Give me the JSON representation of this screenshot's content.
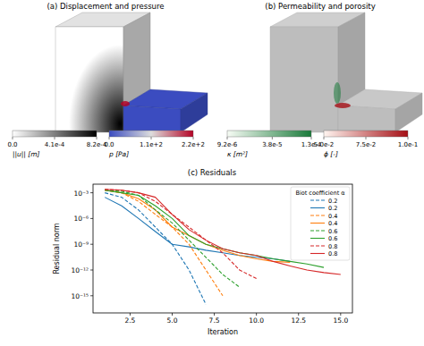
{
  "figure": {
    "panels": [
      {
        "title": "(a) Displacement and pressure",
        "colorbars": [
          {
            "label": "||u|| [m]",
            "range": [
              0,
              0.00082
            ],
            "ticks": [
              {
                "value": 0,
                "label": "0.0"
              },
              {
                "value": 0.00041,
                "label": "4.1e-4"
              },
              {
                "value": 0.00082,
                "label": "8.2e-4"
              }
            ],
            "colors": [
              "#ffffff",
              "#000000"
            ]
          },
          {
            "label": "p [Pa]",
            "range": [
              0,
              220
            ],
            "ticks": [
              {
                "value": 0,
                "label": "0.0"
              },
              {
                "value": 110,
                "label": "1.1e+2"
              },
              {
                "value": 220,
                "label": "2.2e+2"
              }
            ],
            "colors": [
              "#3b4cc0",
              "#dddddd",
              "#b40426"
            ]
          }
        ]
      },
      {
        "title": "(b) Permeability and porosity",
        "colorbars": [
          {
            "label": "κ [m²]",
            "range": [
              9.2e-06,
              0.00013
            ],
            "log": true,
            "ticks": [
              {
                "value": 9.2e-06,
                "label": "9.2e-6"
              },
              {
                "value": 3.8e-05,
                "label": "3.8e-5"
              },
              {
                "value": 0.00013,
                "label": "1.3e-4"
              }
            ],
            "colors": [
              "#f7fcf5",
              "#1a7a3a"
            ]
          },
          {
            "label": "ϕ [-]",
            "range": [
              0.05,
              0.1
            ],
            "ticks": [
              {
                "value": 0.05,
                "label": "5.0e-2"
              },
              {
                "value": 0.075,
                "label": "7.5e-2"
              },
              {
                "value": 0.1,
                "label": "1.0e-1"
              }
            ],
            "colors": [
              "#fff5f0",
              "#a50f15"
            ]
          }
        ]
      }
    ]
  },
  "chart_data": {
    "type": "line",
    "title": "(c) Residuals",
    "x_label": "Iteration",
    "y_label": "Residual norm",
    "legend_title": "Biot coefficient α",
    "legend": "upper right",
    "log": "y",
    "grid": false,
    "x": [
      1,
      2,
      3,
      4,
      5,
      6,
      7,
      8,
      9,
      10,
      11,
      12,
      13,
      14,
      15
    ],
    "xlim": [
      0.3,
      15.7
    ],
    "xticks": [
      2.5,
      {
        "value": 5,
        "label": "5.0"
      },
      7.5,
      {
        "value": 10,
        "label": "10.0"
      },
      12.5,
      {
        "value": 15,
        "label": "15.0"
      }
    ],
    "ylim": [
      1e-17,
      0.01
    ],
    "yticks": [
      {
        "value": 1e-15,
        "label": "10⁻¹⁵"
      },
      {
        "value": 1e-12,
        "label": "10⁻¹²"
      },
      {
        "value": 1e-09,
        "label": "10⁻⁹"
      },
      {
        "value": 1e-06,
        "label": "10⁻⁶"
      },
      {
        "value": 0.001,
        "label": "10⁻³"
      }
    ],
    "series": [
      {
        "name": "0.2",
        "color": "#1f77b4",
        "line_style": "dashed",
        "values": [
          0.001,
          0.0003,
          1e-05,
          1e-07,
          1e-09,
          1e-12,
          1e-16,
          null,
          null,
          null,
          null,
          null,
          null,
          null,
          null
        ]
      },
      {
        "name": "0.2",
        "color": "#1f77b4",
        "line_style": "solid",
        "values": [
          0.0003,
          3e-05,
          1e-06,
          3e-08,
          1e-09,
          5e-10,
          2e-10,
          1e-10,
          5e-11,
          3e-11,
          2e-11,
          1e-11,
          null,
          null,
          null
        ]
      },
      {
        "name": "0.4",
        "color": "#ff7f0e",
        "line_style": "dashed",
        "values": [
          0.002,
          0.001,
          0.0001,
          3e-06,
          1e-07,
          1e-09,
          1e-12,
          1e-15,
          null,
          null,
          null,
          null,
          null,
          null,
          null
        ]
      },
      {
        "name": "0.4",
        "color": "#ff7f0e",
        "line_style": "solid",
        "values": [
          0.002,
          0.001,
          0.0002,
          1e-05,
          1e-07,
          1e-08,
          1e-09,
          2e-10,
          5e-11,
          2e-11,
          1e-11,
          8e-12,
          null,
          null,
          null
        ]
      },
      {
        "name": "0.6",
        "color": "#2ca02c",
        "line_style": "dashed",
        "values": [
          0.002,
          0.0015,
          0.0005,
          1e-05,
          3e-07,
          3e-09,
          3e-11,
          3e-13,
          1e-14,
          null,
          null,
          null,
          null,
          null,
          null
        ]
      },
      {
        "name": "0.6",
        "color": "#2ca02c",
        "line_style": "solid",
        "values": [
          0.002,
          0.001,
          0.0005,
          3e-05,
          1e-06,
          1e-08,
          1e-09,
          3e-10,
          1e-10,
          5e-11,
          2e-11,
          1e-11,
          5e-12,
          2e-12,
          null
        ]
      },
      {
        "name": "0.8",
        "color": "#d62728",
        "line_style": "dashed",
        "values": [
          0.0025,
          0.002,
          0.001,
          0.0001,
          3e-06,
          1e-07,
          3e-09,
          1e-10,
          1e-12,
          1e-13,
          null,
          null,
          null,
          null,
          null
        ]
      },
      {
        "name": "0.8",
        "color": "#d62728",
        "line_style": "solid",
        "values": [
          0.0025,
          0.002,
          0.001,
          0.0003,
          3e-06,
          5e-08,
          3e-09,
          3e-10,
          1e-10,
          5e-11,
          1e-11,
          3e-12,
          1e-12,
          5e-13,
          3e-13
        ]
      }
    ]
  }
}
